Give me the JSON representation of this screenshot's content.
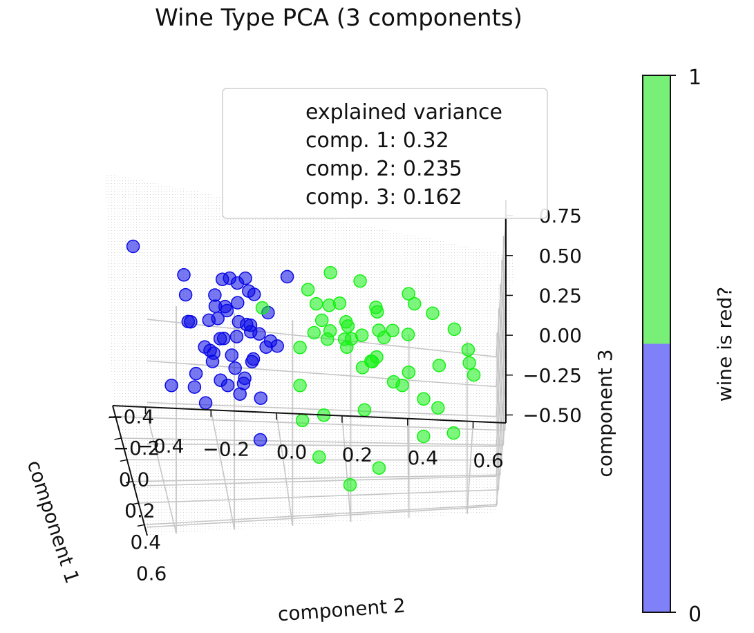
{
  "chart_data": {
    "type": "scatter",
    "title": "Wine Type PCA (3 components)",
    "axes": {
      "x": {
        "label": "component 1",
        "ticks": [
          "−0.4",
          "−0.2",
          "0.0",
          "0.2",
          "0.4",
          "0.6"
        ],
        "range": [
          -0.5,
          0.7
        ]
      },
      "y": {
        "label": "component 2",
        "ticks": [
          "−0.4",
          "−0.2",
          "0.0",
          "0.2",
          "0.4",
          "0.6"
        ],
        "range": [
          -0.5,
          0.7
        ]
      },
      "z": {
        "label": "component 3",
        "ticks": [
          "−0.50",
          "−0.25",
          "0.00",
          "0.25",
          "0.50",
          "0.75"
        ],
        "range": [
          -0.55,
          0.85
        ]
      }
    },
    "grid": true,
    "annotation": {
      "lines": [
        "explained variance",
        "comp. 1: 0.32",
        "comp. 2: 0.235",
        "comp. 3: 0.162"
      ],
      "position": "top-center"
    },
    "colorbar": {
      "label": "wine is red?",
      "ticks": [
        "0",
        "1"
      ],
      "colors": {
        "0": "#8080f8",
        "1": "#78f078"
      }
    },
    "series": [
      {
        "class": 0,
        "color": "#0a0ae6",
        "points": [
          [
            0.02,
            -0.15,
            0.25
          ],
          [
            0.05,
            -0.12,
            0.35
          ],
          [
            -0.03,
            -0.2,
            0.2
          ],
          [
            0.08,
            -0.1,
            0.15
          ],
          [
            0.0,
            -0.18,
            0.4
          ],
          [
            -0.05,
            -0.14,
            0.3
          ],
          [
            0.1,
            -0.16,
            0.1
          ],
          [
            0.04,
            -0.22,
            0.45
          ],
          [
            -0.08,
            -0.1,
            0.22
          ],
          [
            0.12,
            -0.13,
            0.05
          ],
          [
            0.06,
            -0.08,
            0.3
          ],
          [
            -0.02,
            -0.25,
            0.15
          ],
          [
            0.15,
            -0.2,
            0.32
          ],
          [
            0.03,
            -0.05,
            0.42
          ],
          [
            -0.1,
            -0.18,
            0.36
          ],
          [
            0.09,
            -0.24,
            0.2
          ],
          [
            0.0,
            -0.1,
            0.08
          ],
          [
            0.07,
            -0.15,
            0.5
          ],
          [
            -0.04,
            -0.22,
            0.1
          ],
          [
            0.11,
            -0.06,
            0.25
          ],
          [
            -0.12,
            -0.14,
            0.5
          ],
          [
            0.2,
            -0.15,
            0.0
          ],
          [
            0.18,
            -0.25,
            0.45
          ],
          [
            -0.15,
            -0.2,
            0.25
          ],
          [
            0.13,
            -0.1,
            0.6
          ],
          [
            0.05,
            -0.3,
            0.35
          ],
          [
            0.01,
            -0.28,
            0.0
          ],
          [
            0.25,
            -0.18,
            0.28
          ],
          [
            0.3,
            -0.22,
            0.15
          ],
          [
            0.22,
            -0.3,
            0.05
          ],
          [
            -0.2,
            -0.1,
            0.4
          ],
          [
            0.1,
            -0.32,
            0.55
          ],
          [
            0.35,
            -0.25,
            0.3
          ],
          [
            0.04,
            -0.18,
            -0.05
          ],
          [
            0.16,
            -0.08,
            -0.05
          ],
          [
            -0.02,
            -0.12,
            0.6
          ],
          [
            0.08,
            -0.2,
            0.65
          ],
          [
            0.28,
            -0.12,
            0.5
          ],
          [
            -0.25,
            -0.3,
            0.45
          ],
          [
            0.4,
            -0.15,
            0.2
          ],
          [
            -0.3,
            -0.2,
            0.3
          ],
          [
            0.45,
            -0.28,
            0.1
          ],
          [
            -0.35,
            -0.45,
            0.55
          ],
          [
            0.5,
            -0.1,
            -0.1
          ],
          [
            -0.1,
            -0.35,
            -0.15
          ],
          [
            0.3,
            0.0,
            0.85
          ],
          [
            0.2,
            -0.05,
            0.35
          ],
          [
            0.02,
            -0.02,
            0.2
          ],
          [
            -0.06,
            -0.3,
            0.28
          ],
          [
            0.14,
            -0.18,
            0.7
          ]
        ]
      },
      {
        "class": 1,
        "color": "#14f014",
        "points": [
          [
            0.0,
            0.15,
            0.3
          ],
          [
            0.05,
            0.2,
            0.4
          ],
          [
            -0.05,
            0.1,
            0.25
          ],
          [
            0.1,
            0.25,
            0.35
          ],
          [
            0.02,
            0.18,
            0.5
          ],
          [
            -0.08,
            0.22,
            0.2
          ],
          [
            0.12,
            0.12,
            0.45
          ],
          [
            0.06,
            0.28,
            0.15
          ],
          [
            -0.02,
            0.08,
            0.55
          ],
          [
            0.15,
            0.2,
            0.3
          ],
          [
            0.08,
            0.3,
            0.5
          ],
          [
            -0.1,
            0.15,
            0.4
          ],
          [
            0.2,
            0.25,
            0.2
          ],
          [
            0.04,
            0.35,
            0.35
          ],
          [
            0.18,
            0.1,
            0.6
          ],
          [
            -0.06,
            0.3,
            0.1
          ],
          [
            0.25,
            0.32,
            0.45
          ],
          [
            0.1,
            0.05,
            0.25
          ],
          [
            0.0,
            0.4,
            0.3
          ],
          [
            0.3,
            0.2,
            0.55
          ],
          [
            -0.15,
            0.2,
            0.15
          ],
          [
            0.22,
            0.38,
            0.1
          ],
          [
            0.35,
            0.28,
            0.35
          ],
          [
            0.12,
            0.42,
            0.6
          ],
          [
            -0.2,
            0.25,
            0.5
          ],
          [
            0.4,
            0.35,
            0.25
          ],
          [
            0.28,
            0.45,
            0.05
          ],
          [
            0.05,
            0.15,
            0.72
          ],
          [
            0.45,
            0.3,
            0.65
          ],
          [
            0.32,
            0.12,
            -0.05
          ],
          [
            -0.25,
            0.3,
            0.3
          ],
          [
            0.5,
            0.4,
            0.4
          ],
          [
            0.15,
            0.5,
            0.2
          ],
          [
            0.38,
            0.48,
            0.75
          ],
          [
            0.55,
            0.25,
            0.15
          ],
          [
            0.2,
            0.55,
            0.5
          ],
          [
            -0.3,
            0.15,
            0.05
          ],
          [
            0.6,
            0.45,
            0.0
          ],
          [
            0.42,
            0.55,
            -0.1
          ],
          [
            0.25,
            0.6,
            0.3
          ],
          [
            0.5,
            0.6,
            0.6
          ],
          [
            0.1,
            0.05,
            0.0
          ],
          [
            0.3,
            0.05,
            -0.1
          ],
          [
            0.45,
            0.1,
            -0.25
          ],
          [
            0.6,
            0.2,
            -0.35
          ],
          [
            0.5,
            0.3,
            -0.3
          ],
          [
            0.35,
            0.4,
            0.85
          ],
          [
            0.7,
            0.5,
            0.3
          ],
          [
            -0.35,
            -0.05,
            0.2
          ],
          [
            0.55,
            0.62,
            0.45
          ]
        ]
      }
    ]
  }
}
